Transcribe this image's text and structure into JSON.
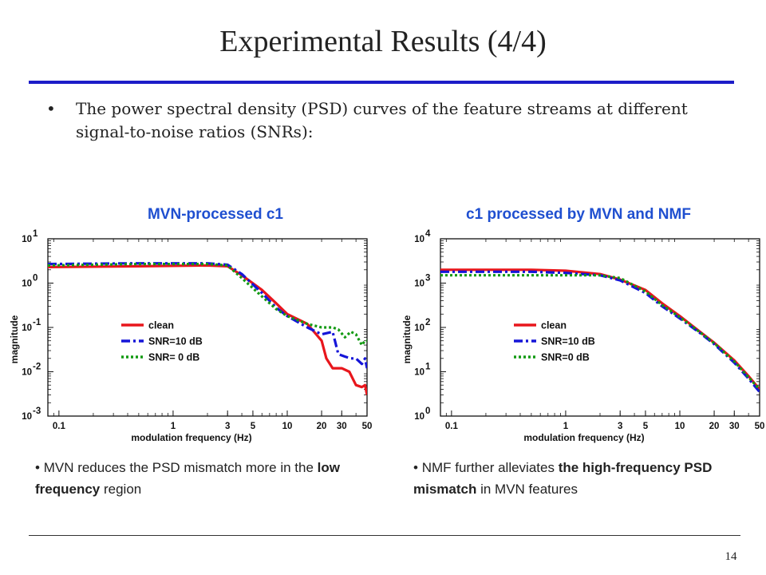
{
  "slide": {
    "title": "Experimental Results (4/4)",
    "bullet": "The power spectral density (PSD) curves of the feature streams at different signal-to-noise ratios (SNRs):",
    "bullet_mark": "•",
    "page_number": "14"
  },
  "left_panel": {
    "heading": "MVN-processed  c1",
    "note": {
      "mark": "•",
      "p1": "MVN reduces the PSD mismatch more in the ",
      "p2": "low frequency",
      "p3": " region"
    }
  },
  "right_panel": {
    "heading": "c1 processed by MVN and NMF",
    "note": {
      "mark": "•",
      "p1": "NMF further alleviates ",
      "p2": "the high-frequency PSD mismatch",
      "p3": " in MVN features"
    }
  },
  "colors": {
    "title_rule": "#1c1cc8",
    "heading": "#1f4fd0",
    "clean": "#e8161c",
    "snr10": "#1515d8",
    "snr0": "#139a13"
  },
  "chart_data": [
    {
      "type": "line",
      "xlabel": "modulation frequency (Hz)",
      "ylabel": "magnitude",
      "x_scale": "log",
      "y_scale": "log",
      "xlim": [
        0.08,
        50
      ],
      "ylim": [
        0.001,
        10
      ],
      "xticks": [
        0.1,
        1,
        3,
        5,
        10,
        20,
        30,
        50
      ],
      "xtick_labels": [
        "0.1",
        "1",
        "3",
        "5",
        "10",
        "20",
        "30",
        "50"
      ],
      "yticks": [
        0.001,
        0.01,
        0.1,
        1,
        10
      ],
      "ytick_labels": [
        [
          "10",
          "-3"
        ],
        [
          "10",
          "-2"
        ],
        [
          "10",
          "-1"
        ],
        [
          "10",
          "0"
        ],
        [
          "10",
          "1"
        ]
      ],
      "legend_position": "center-left",
      "series": [
        {
          "name": "clean",
          "style": "solid",
          "color": "#e8161c",
          "points": [
            [
              0.08,
              2.3
            ],
            [
              0.5,
              2.4
            ],
            [
              2,
              2.5
            ],
            [
              3,
              2.4
            ],
            [
              4,
              1.5
            ],
            [
              6,
              0.7
            ],
            [
              8,
              0.35
            ],
            [
              10,
              0.2
            ],
            [
              15,
              0.12
            ],
            [
              20,
              0.05
            ],
            [
              22,
              0.02
            ],
            [
              25,
              0.012
            ],
            [
              30,
              0.012
            ],
            [
              35,
              0.01
            ],
            [
              40,
              0.005
            ],
            [
              45,
              0.0045
            ],
            [
              48,
              0.005
            ],
            [
              50,
              0.003
            ]
          ]
        },
        {
          "name": "SNR=10 dB",
          "style": "dashdot",
          "color": "#1515d8",
          "points": [
            [
              0.08,
              2.7
            ],
            [
              0.5,
              2.8
            ],
            [
              2,
              2.8
            ],
            [
              3,
              2.6
            ],
            [
              4,
              1.6
            ],
            [
              6,
              0.6
            ],
            [
              8,
              0.28
            ],
            [
              10,
              0.18
            ],
            [
              15,
              0.1
            ],
            [
              20,
              0.07
            ],
            [
              25,
              0.08
            ],
            [
              28,
              0.025
            ],
            [
              32,
              0.022
            ],
            [
              36,
              0.02
            ],
            [
              40,
              0.02
            ],
            [
              45,
              0.015
            ],
            [
              48,
              0.02
            ],
            [
              50,
              0.012
            ]
          ]
        },
        {
          "name": "SNR= 0 dB",
          "style": "dotted",
          "color": "#139a13",
          "points": [
            [
              0.08,
              2.5
            ],
            [
              0.5,
              2.7
            ],
            [
              2,
              2.7
            ],
            [
              3,
              2.5
            ],
            [
              4,
              1.3
            ],
            [
              6,
              0.5
            ],
            [
              8,
              0.26
            ],
            [
              10,
              0.18
            ],
            [
              15,
              0.12
            ],
            [
              20,
              0.1
            ],
            [
              25,
              0.1
            ],
            [
              28,
              0.09
            ],
            [
              32,
              0.06
            ],
            [
              36,
              0.08
            ],
            [
              40,
              0.07
            ],
            [
              45,
              0.04
            ],
            [
              48,
              0.05
            ],
            [
              50,
              0.05
            ]
          ]
        }
      ]
    },
    {
      "type": "line",
      "xlabel": "modulation frequency (Hz)",
      "ylabel": "magnitude",
      "x_scale": "log",
      "y_scale": "log",
      "xlim": [
        0.08,
        50
      ],
      "ylim": [
        1,
        10000
      ],
      "xticks": [
        0.1,
        1,
        3,
        5,
        10,
        20,
        30,
        50
      ],
      "xtick_labels": [
        "0.1",
        "1",
        "3",
        "5",
        "10",
        "20",
        "30",
        "50"
      ],
      "yticks": [
        1,
        10,
        100,
        1000,
        10000
      ],
      "ytick_labels": [
        [
          "10",
          "0"
        ],
        [
          "10",
          "1"
        ],
        [
          "10",
          "2"
        ],
        [
          "10",
          "3"
        ],
        [
          "10",
          "4"
        ]
      ],
      "legend_position": "center-left",
      "series": [
        {
          "name": "clean",
          "style": "solid",
          "color": "#e8161c",
          "points": [
            [
              0.08,
              2000
            ],
            [
              0.5,
              2000
            ],
            [
              1,
              1900
            ],
            [
              2,
              1600
            ],
            [
              3,
              1200
            ],
            [
              5,
              700
            ],
            [
              7,
              350
            ],
            [
              10,
              180
            ],
            [
              15,
              80
            ],
            [
              20,
              45
            ],
            [
              30,
              18
            ],
            [
              40,
              8
            ],
            [
              50,
              4
            ]
          ]
        },
        {
          "name": "SNR=10 dB",
          "style": "dashdot",
          "color": "#1515d8",
          "points": [
            [
              0.08,
              1800
            ],
            [
              0.5,
              1800
            ],
            [
              1,
              1700
            ],
            [
              2,
              1500
            ],
            [
              3,
              1150
            ],
            [
              5,
              600
            ],
            [
              7,
              300
            ],
            [
              10,
              160
            ],
            [
              15,
              75
            ],
            [
              20,
              42
            ],
            [
              30,
              16
            ],
            [
              40,
              7
            ],
            [
              50,
              3.5
            ]
          ]
        },
        {
          "name": "SNR=0 dB",
          "style": "dotted",
          "color": "#139a13",
          "points": [
            [
              0.08,
              1500
            ],
            [
              0.5,
              1500
            ],
            [
              1,
              1500
            ],
            [
              2,
              1500
            ],
            [
              3,
              1300
            ],
            [
              5,
              650
            ],
            [
              7,
              320
            ],
            [
              10,
              170
            ],
            [
              15,
              78
            ],
            [
              20,
              44
            ],
            [
              30,
              17
            ],
            [
              40,
              7.5
            ],
            [
              50,
              4
            ]
          ]
        }
      ]
    }
  ]
}
